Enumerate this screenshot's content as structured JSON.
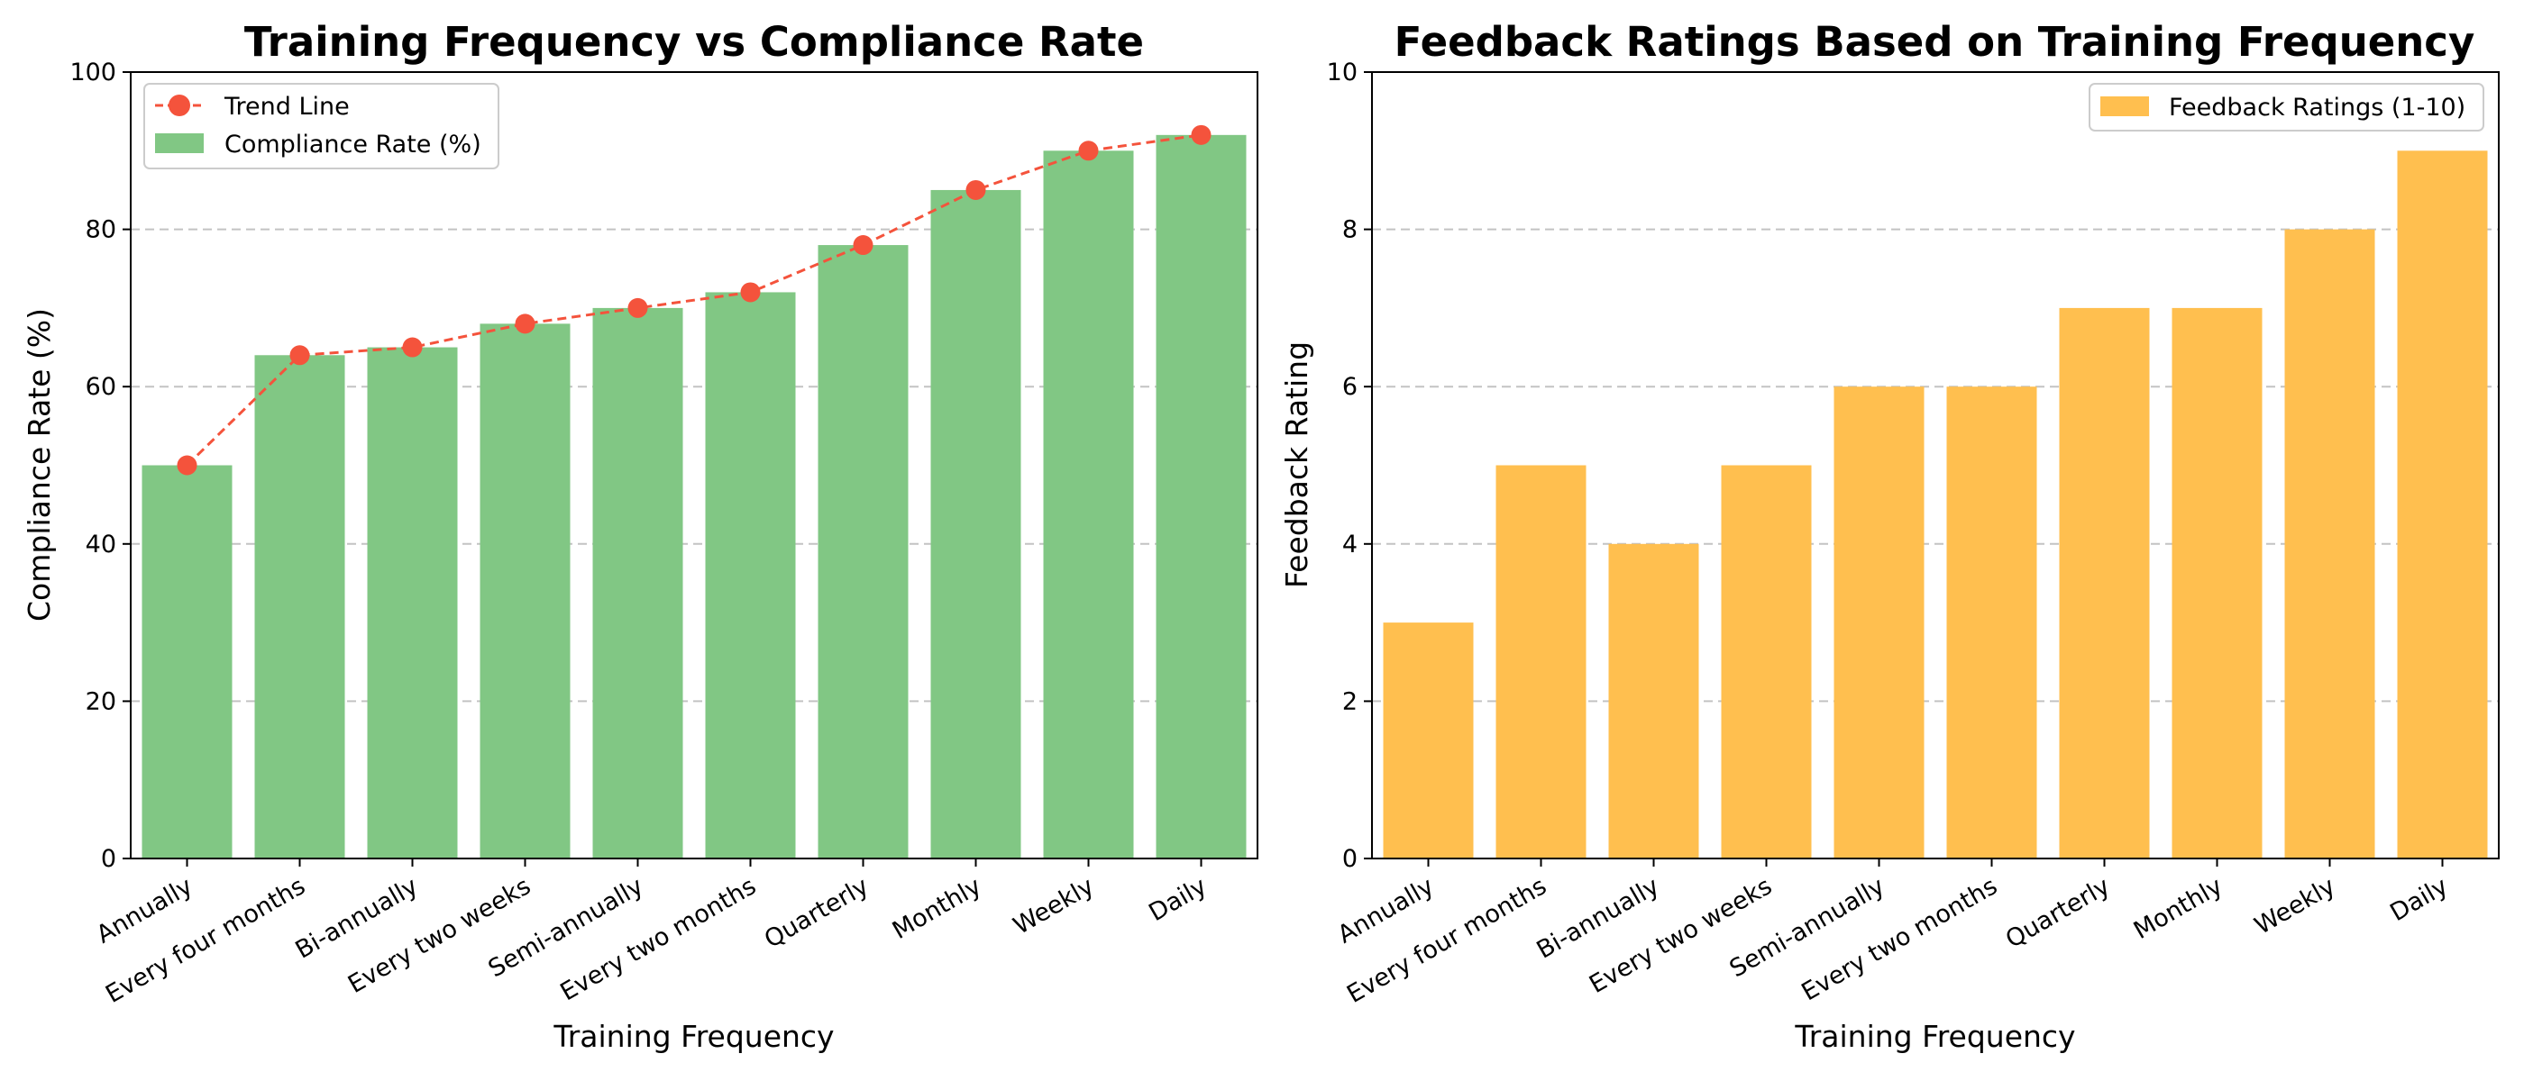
{
  "chart_data": [
    {
      "type": "bar",
      "title": "Training Frequency vs Compliance Rate",
      "xlabel": "Training Frequency",
      "ylabel": "Compliance Rate (%)",
      "categories": [
        "Annually",
        "Every four months",
        "Bi-annually",
        "Every two weeks",
        "Semi-annually",
        "Every two months",
        "Quarterly",
        "Monthly",
        "Weekly",
        "Daily"
      ],
      "ylim": [
        0,
        100
      ],
      "yticks": [
        0,
        20,
        40,
        60,
        80,
        100
      ],
      "grid": "y-dashed",
      "legend_position": "top-left",
      "series": [
        {
          "name": "Compliance Rate (%)",
          "kind": "bar",
          "color": "#81c784",
          "values": [
            50,
            64,
            65,
            68,
            70,
            72,
            78,
            85,
            90,
            92
          ]
        },
        {
          "name": "Trend Line",
          "kind": "line",
          "color": "#f4533c",
          "values": [
            50,
            64,
            65,
            68,
            70,
            72,
            78,
            85,
            90,
            92
          ]
        }
      ]
    },
    {
      "type": "bar",
      "title": "Feedback Ratings Based on Training Frequency",
      "xlabel": "Training Frequency",
      "ylabel": "Feedback Rating",
      "categories": [
        "Annually",
        "Every four months",
        "Bi-annually",
        "Every two weeks",
        "Semi-annually",
        "Every two months",
        "Quarterly",
        "Monthly",
        "Weekly",
        "Daily"
      ],
      "ylim": [
        0,
        10
      ],
      "yticks": [
        0,
        2,
        4,
        6,
        8,
        10
      ],
      "grid": "y-dashed",
      "legend_position": "top-right",
      "series": [
        {
          "name": "Feedback Ratings (1-10)",
          "kind": "bar",
          "color": "#ffbf4f",
          "values": [
            3,
            5,
            4,
            5,
            6,
            6,
            7,
            7,
            8,
            9
          ]
        }
      ]
    }
  ]
}
